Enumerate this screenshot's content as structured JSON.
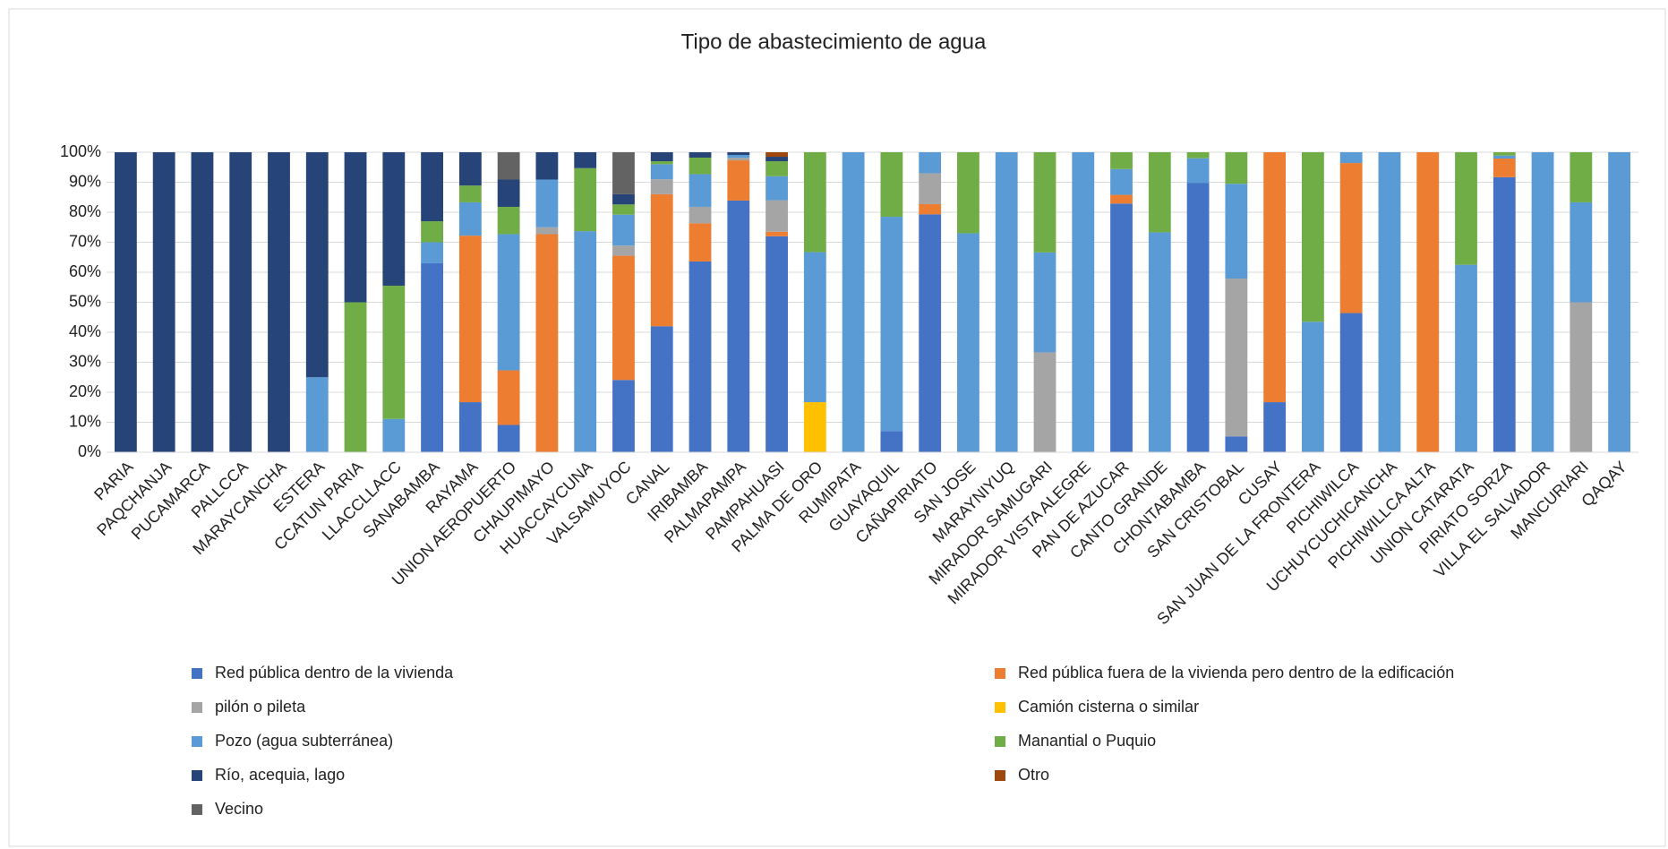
{
  "chart_data": {
    "type": "stacked_bar_100",
    "title": "Tipo de abastecimiento de agua",
    "categories": [
      "PARIA",
      "PAQCHANJA",
      "PUCAMARCA",
      "PALLCCA",
      "MARAYCANCHA",
      "ESTERA",
      "CCATUN PARIA",
      "LLACCLLACC",
      "SANABAMBA",
      "RAYAMA",
      "UNION AEROPUERTO",
      "CHAUPIMAYO",
      "HUACCAYCUNA",
      "VALSAMUYOC",
      "CANAL",
      "IRIBAMBA",
      "PALMAPAMPA",
      "PAMPAHUASI",
      "PALMA DE ORO",
      "RUMIPATA",
      "GUAYAQUIL",
      "CAÑAPIRIATO",
      "SAN JOSE",
      "MARAYNIYUQ",
      "MIRADOR SAMUGARI",
      "MIRADOR VISTA ALEGRE",
      "PAN DE AZUCAR",
      "CANTO GRANDE",
      "CHONTABAMBA",
      "SAN CRISTOBAL",
      "CUSAY",
      "SAN JUAN DE LA FRONTERA",
      "PICHIWILCA",
      "UCHUYCUCHICANCHA",
      "PICHIWILLCA ALTA",
      "UNION CATARATA",
      "PIRIATO SORZA",
      "VILLA EL SALVADOR",
      "MANCURIARI",
      "QAQAY"
    ],
    "series": [
      {
        "name": "Red pública dentro de la vivienda",
        "color": "#4472c4",
        "values": [
          0,
          0,
          0,
          0,
          0,
          0,
          0,
          0,
          63,
          16.7,
          9.1,
          0,
          0,
          24.1,
          42,
          63.6,
          83.9,
          72,
          0,
          0,
          7.1,
          79.3,
          0,
          0,
          0,
          0,
          82.9,
          0,
          89.7,
          5.3,
          16.7,
          0,
          46.4,
          0,
          0,
          0,
          91.7,
          0,
          0,
          0
        ]
      },
      {
        "name": "Red pública fuera de la vivienda pero dentro de la edificación",
        "color": "#ed7d31",
        "values": [
          0,
          0,
          0,
          0,
          0,
          0,
          0,
          0,
          0,
          55.5,
          18.2,
          72.7,
          0,
          41.4,
          44,
          12.7,
          13.4,
          1.5,
          0,
          0,
          0,
          3.4,
          0,
          0,
          0,
          0,
          2.9,
          0,
          0,
          0,
          83.3,
          0,
          50,
          0,
          100,
          0,
          6.2,
          0,
          0,
          0
        ]
      },
      {
        "name": "pilón o pileta",
        "color": "#a5a5a5",
        "values": [
          0,
          0,
          0,
          0,
          0,
          0,
          0,
          0,
          0,
          0,
          0,
          2.3,
          0,
          3.4,
          5,
          5.5,
          0.9,
          10.5,
          0,
          0,
          0,
          10.3,
          0,
          0,
          33.3,
          0,
          0,
          0,
          0,
          52.6,
          0,
          0,
          0,
          0,
          0,
          0,
          0,
          0,
          50,
          0
        ]
      },
      {
        "name": "Camión cisterna o similar",
        "color": "#ffc000",
        "values": [
          0,
          0,
          0,
          0,
          0,
          0,
          0,
          0,
          0,
          0,
          0,
          0,
          0,
          0,
          0,
          0,
          0,
          0,
          16.7,
          0,
          0,
          0,
          0,
          0,
          0,
          0,
          0,
          0,
          0,
          0,
          0,
          0,
          0,
          0,
          0,
          0,
          0,
          0,
          0,
          0
        ]
      },
      {
        "name": "Pozo (agua subterránea)",
        "color": "#5b9bd5",
        "values": [
          0,
          0,
          0,
          0,
          0,
          25,
          0,
          11.1,
          7,
          11.1,
          45.4,
          15.9,
          73.7,
          10.3,
          5,
          10.9,
          0.9,
          8,
          50,
          100,
          71.4,
          7,
          73,
          100,
          33.3,
          100,
          8.6,
          73.3,
          8.3,
          31.6,
          0,
          43.5,
          3.6,
          100,
          0,
          62.5,
          1,
          100,
          33.3,
          100
        ]
      },
      {
        "name": "Manantial o Puquio",
        "color": "#70ad47",
        "values": [
          0,
          0,
          0,
          0,
          0,
          0,
          50,
          44.4,
          7,
          5.6,
          9.1,
          0,
          21,
          3.4,
          1,
          5.5,
          0,
          5,
          33.3,
          0,
          21.5,
          0,
          27,
          0,
          33.4,
          0,
          5.6,
          26.7,
          2,
          10.5,
          0,
          56.5,
          0,
          0,
          0,
          37.5,
          1.1,
          0,
          16.7,
          0
        ]
      },
      {
        "name": "Río, acequia, lago",
        "color": "#264478",
        "values": [
          100,
          100,
          100,
          100,
          100,
          75,
          50,
          44.5,
          23,
          11.1,
          9.1,
          9.1,
          5.3,
          3.4,
          3,
          1.8,
          0.9,
          1.5,
          0,
          0,
          0,
          0,
          0,
          0,
          0,
          0,
          0,
          0,
          0,
          0,
          0,
          0,
          0,
          0,
          0,
          0,
          0,
          0,
          0,
          0
        ]
      },
      {
        "name": "Otro",
        "color": "#9e480e",
        "values": [
          0,
          0,
          0,
          0,
          0,
          0,
          0,
          0,
          0,
          0,
          0,
          0,
          0,
          0,
          0,
          0,
          0,
          1.5,
          0,
          0,
          0,
          0,
          0,
          0,
          0,
          0,
          0,
          0,
          0,
          0,
          0,
          0,
          0,
          0,
          0,
          0,
          0,
          0,
          0,
          0
        ]
      },
      {
        "name": " Vecino",
        "color": "#636363",
        "values": [
          0,
          0,
          0,
          0,
          0,
          0,
          0,
          0,
          0,
          0,
          9.1,
          0,
          0,
          14,
          0,
          0,
          0,
          0,
          0,
          0,
          0,
          0,
          0,
          0,
          0,
          0,
          0,
          0,
          0,
          0,
          0,
          0,
          0,
          0,
          0,
          0,
          0,
          0,
          0,
          0
        ]
      }
    ],
    "ylim": [
      0,
      100
    ],
    "yticks": [
      {
        "value": 0,
        "label": "0%"
      },
      {
        "value": 10,
        "label": "10%"
      },
      {
        "value": 20,
        "label": "20%"
      },
      {
        "value": 30,
        "label": "30%"
      },
      {
        "value": 40,
        "label": "40%"
      },
      {
        "value": 50,
        "label": "50%"
      },
      {
        "value": 60,
        "label": "60%"
      },
      {
        "value": 70,
        "label": "70%"
      },
      {
        "value": 80,
        "label": "80%"
      },
      {
        "value": 90,
        "label": "90%"
      },
      {
        "value": 100,
        "label": "100%"
      }
    ],
    "grid": true,
    "legend": "bottom"
  }
}
